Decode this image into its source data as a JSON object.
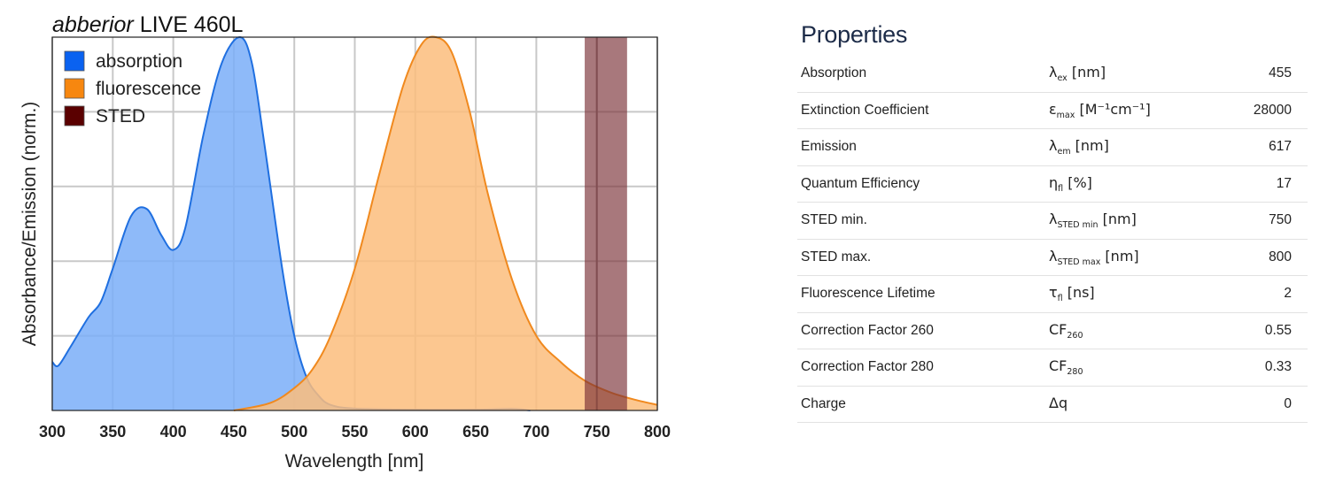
{
  "chart_data": {
    "type": "area",
    "title_italic": "abberior",
    "title_rest": "LIVE 460L",
    "xlabel": "Wavelength [nm]",
    "ylabel": "Absorbance/Emission (norm.)",
    "xlim": [
      300,
      800
    ],
    "ylim": [
      0,
      1
    ],
    "xticks": [
      300,
      350,
      400,
      450,
      500,
      550,
      600,
      650,
      700,
      750,
      800
    ],
    "ygrid": [
      0.2,
      0.4,
      0.6,
      0.8
    ],
    "grid": true,
    "legend_position": "top-left",
    "series": [
      {
        "name": "absorption",
        "color": "#1f6fe0",
        "fill": "#7aaef8",
        "x": [
          300,
          305,
          315,
          330,
          340,
          350,
          365,
          378,
          390,
          400,
          410,
          425,
          440,
          455,
          465,
          475,
          490,
          500,
          510,
          520,
          530,
          550,
          600,
          650,
          680,
          695
        ],
        "y": [
          0.13,
          0.12,
          0.17,
          0.25,
          0.29,
          0.38,
          0.52,
          0.54,
          0.47,
          0.43,
          0.49,
          0.74,
          0.93,
          1.0,
          0.93,
          0.72,
          0.38,
          0.2,
          0.09,
          0.04,
          0.015,
          0.005,
          0.002,
          0.002,
          0.004,
          0.0
        ]
      },
      {
        "name": "fluorescence",
        "color": "#f0891e",
        "fill": "#fbbd7c",
        "x": [
          450,
          480,
          500,
          515,
          530,
          550,
          570,
          590,
          605,
          617,
          630,
          645,
          660,
          680,
          700,
          720,
          740,
          760,
          780,
          800
        ],
        "y": [
          0.0,
          0.02,
          0.06,
          0.11,
          0.2,
          0.38,
          0.63,
          0.87,
          0.98,
          1.0,
          0.96,
          0.8,
          0.58,
          0.35,
          0.2,
          0.13,
          0.08,
          0.05,
          0.03,
          0.015
        ]
      },
      {
        "name": "STED",
        "color": "#5a0000",
        "fill": "#7a3036",
        "band": [
          740,
          775
        ],
        "line": 750
      }
    ]
  },
  "properties": {
    "title": "Properties",
    "rows": [
      {
        "name": "Absorption",
        "sym": "λ",
        "sub": "ex",
        "unit": " [nm]",
        "value": "455"
      },
      {
        "name": "Extinction Coefficient",
        "sym": "ε",
        "sub": "max",
        "unit": " [M⁻¹cm⁻¹]",
        "value": "28000"
      },
      {
        "name": "Emission",
        "sym": "λ",
        "sub": "em",
        "unit": " [nm]",
        "value": "617"
      },
      {
        "name": "Quantum Efficiency",
        "sym": "η",
        "sub": "fl",
        "unit": " [%]",
        "value": "17"
      },
      {
        "name": "STED min.",
        "sym": "λ",
        "sub": "STED min",
        "unit": " [nm]",
        "value": "750"
      },
      {
        "name": "STED max.",
        "sym": "λ",
        "sub": "STED max",
        "unit": " [nm]",
        "value": "800"
      },
      {
        "name": "Fluorescence Lifetime",
        "sym": "τ",
        "sub": "fl",
        "unit": " [ns]",
        "value": "2"
      },
      {
        "name": "Correction Factor 260",
        "sym": "CF",
        "sub": "260",
        "unit": "",
        "value": "0.55"
      },
      {
        "name": "Correction Factor 280",
        "sym": "CF",
        "sub": "280",
        "unit": "",
        "value": "0.33"
      },
      {
        "name": "Charge",
        "sym": "Δq",
        "sub": "",
        "unit": "",
        "value": "0"
      }
    ]
  }
}
